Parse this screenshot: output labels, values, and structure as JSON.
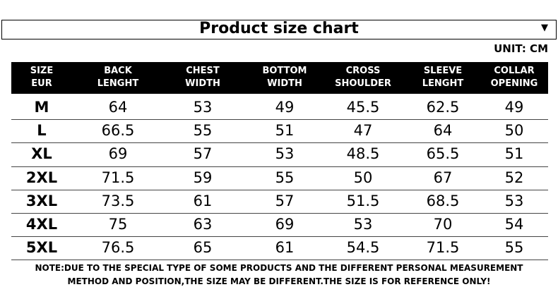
{
  "header": {
    "title": "Product size chart",
    "dropdown_icon": "▼",
    "unit": "UNIT: CM"
  },
  "table": {
    "columns": [
      [
        "SIZE",
        "EUR"
      ],
      [
        "BACK",
        "LENGHT"
      ],
      [
        "CHEST",
        "WIDTH"
      ],
      [
        "BOTTOM",
        "WIDTH"
      ],
      [
        "CROSS",
        "SHOULDER"
      ],
      [
        "SLEEVE",
        "LENGHT"
      ],
      [
        "COLLAR",
        "OPENING"
      ]
    ],
    "rows": [
      [
        "M",
        64,
        53,
        49,
        45.5,
        62.5,
        49
      ],
      [
        "L",
        66.5,
        55,
        51,
        47,
        64,
        50
      ],
      [
        "XL",
        69,
        57,
        53,
        48.5,
        65.5,
        51
      ],
      [
        "2XL",
        71.5,
        59,
        55,
        50,
        67,
        52
      ],
      [
        "3XL",
        73.5,
        61,
        57,
        51.5,
        68.5,
        53
      ],
      [
        "4XL",
        75,
        63,
        69,
        53,
        70,
        54
      ],
      [
        "5XL",
        76.5,
        65,
        61,
        54.5,
        71.5,
        55
      ]
    ]
  },
  "note": [
    "NOTE:DUE TO THE SPECIAL TYPE OF SOME PRODUCTS AND THE DIFFERENT PERSONAL MEASUREMENT",
    "METHOD AND POSITION,THE SIZE MAY BE DIFFERENT.THE SIZE IS FOR REFERENCE ONLY!"
  ]
}
